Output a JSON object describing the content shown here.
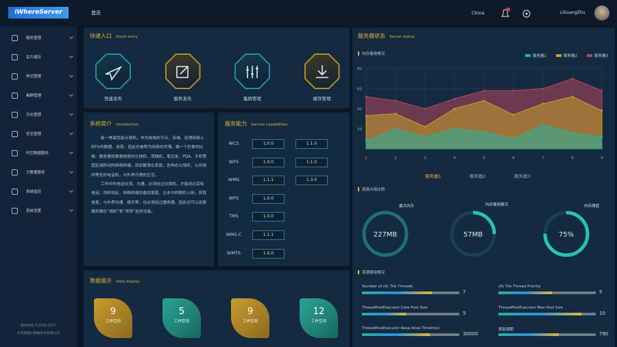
{
  "header": {
    "logo": "iWhereServer",
    "page": "首页",
    "region": "China",
    "user": "LiGuangZhu"
  },
  "menu": [
    "服务管理",
    "瓦片缓存",
    "样式管理",
    "集群管理",
    "日志管理",
    "安全管理",
    "时空数据服务",
    "大数据服务",
    "系统监控",
    "系统设置"
  ],
  "footer": [
    "版权所有 ©2016-2017",
    "北京超维大数据技术有限公司"
  ],
  "quick_entry": {
    "title": "快速入口",
    "subtitle": "Quick entry",
    "items": [
      "快速发布",
      "服务发布",
      "集群管理",
      "缓存管理"
    ]
  },
  "introduction": {
    "title": "系统简介",
    "subtitle": "Introduction",
    "paragraphs": [
      "新一种高性能计算机，作为网络的节点，存储、处理网络上80%的数据、信息，因此也被称为网络的灵魂。做一个形象的比喻：服务器就像是邮局的交换机，而微机、笔记本、PDA、手机等固定或移动的网络终端，就如散落在家庭、各种办公场所、公共场所等处的电话机，与外界日常的生活。",
      "工作中的电话交流、沟通，必须经过交换机，才能到达目标电话；同样如此，网络终端设备如家庭、企业中的微机上网，获取信息，与外界沟通、娱乐等，也必须经过服务器，因此也可以说是服务器在“组织”和“领导”这些设备。"
    ]
  },
  "capabilities": {
    "title": "服务能力",
    "subtitle": "Service capabilities",
    "rows": [
      {
        "name": "WCS",
        "versions": [
          "1.0.0",
          "1.1.0"
        ]
      },
      {
        "name": "WFS",
        "versions": [
          "1.0.0",
          "1.1.0"
        ]
      },
      {
        "name": "WMS",
        "versions": [
          "1.1.1",
          "1.3.0"
        ]
      },
      {
        "name": "WPS",
        "versions": [
          "1.0.0"
        ]
      },
      {
        "name": "TMS",
        "versions": [
          "1.0.0"
        ]
      },
      {
        "name": "WMS-C",
        "versions": [
          "1.1.1"
        ]
      },
      {
        "name": "WMTS",
        "versions": [
          "1.0.0"
        ]
      }
    ]
  },
  "data_display": {
    "title": "数据展示",
    "subtitle": "Data display",
    "cards": [
      {
        "value": 9,
        "label": "工作空间"
      },
      {
        "value": 5,
        "label": "工作空间"
      },
      {
        "value": 9,
        "label": "工作空间"
      },
      {
        "value": 12,
        "label": "工作空间"
      }
    ]
  },
  "server_status": {
    "title": "服务器状态",
    "subtitle": "Server status",
    "tabs": [
      "服务器1",
      "服务器2",
      "服务器3"
    ],
    "resource_ratio": {
      "title": "资源占用比例",
      "gauges": [
        {
          "label": "最大内存",
          "value": 227,
          "value_label": "227MB"
        },
        {
          "label": "内存使用情况",
          "value": 57,
          "value_label": "57MB"
        },
        {
          "label": "内存阈值",
          "value": 75,
          "value_label": "75%"
        }
      ]
    },
    "resource_usage": {
      "title": "资源使用情况",
      "items": [
        {
          "label": "Number of (A) Tile Threads",
          "value": 7
        },
        {
          "label": "(A) Tile Thread Priority",
          "value": 5
        },
        {
          "label": "ThreadPoolExecutor Core Pool Size",
          "value": 5
        },
        {
          "label": "ThreadPoolExecutor Max Pool Size",
          "value": 10
        },
        {
          "label": "ThreadPoolExecutor Keep Alive Time(ms)",
          "value": 30000
        },
        {
          "label": "更新周期",
          "value": 790
        }
      ]
    }
  },
  "chart_data": {
    "type": "area",
    "title": "内存使用情况",
    "x": [
      1,
      2,
      3,
      4,
      5,
      6,
      7,
      8,
      9
    ],
    "xlim": [
      1,
      9
    ],
    "xticks": [
      1,
      2,
      3,
      4,
      5,
      6,
      7,
      8,
      9
    ],
    "ylim": [
      0,
      80
    ],
    "yticks": [
      20,
      40,
      60,
      80
    ],
    "grid": true,
    "series": [
      {
        "name": "服务器3",
        "color": "#b5475c",
        "values": [
          52,
          48,
          40,
          50,
          58,
          58,
          60,
          70,
          58
        ]
      },
      {
        "name": "服务器2",
        "color": "#c9a227",
        "values": [
          33,
          35,
          22,
          40,
          48,
          34,
          45,
          52,
          38
        ]
      },
      {
        "name": "服务器1",
        "color": "#23b3a0",
        "values": [
          8,
          20,
          12,
          20,
          17,
          10,
          24,
          16,
          12
        ]
      }
    ]
  }
}
